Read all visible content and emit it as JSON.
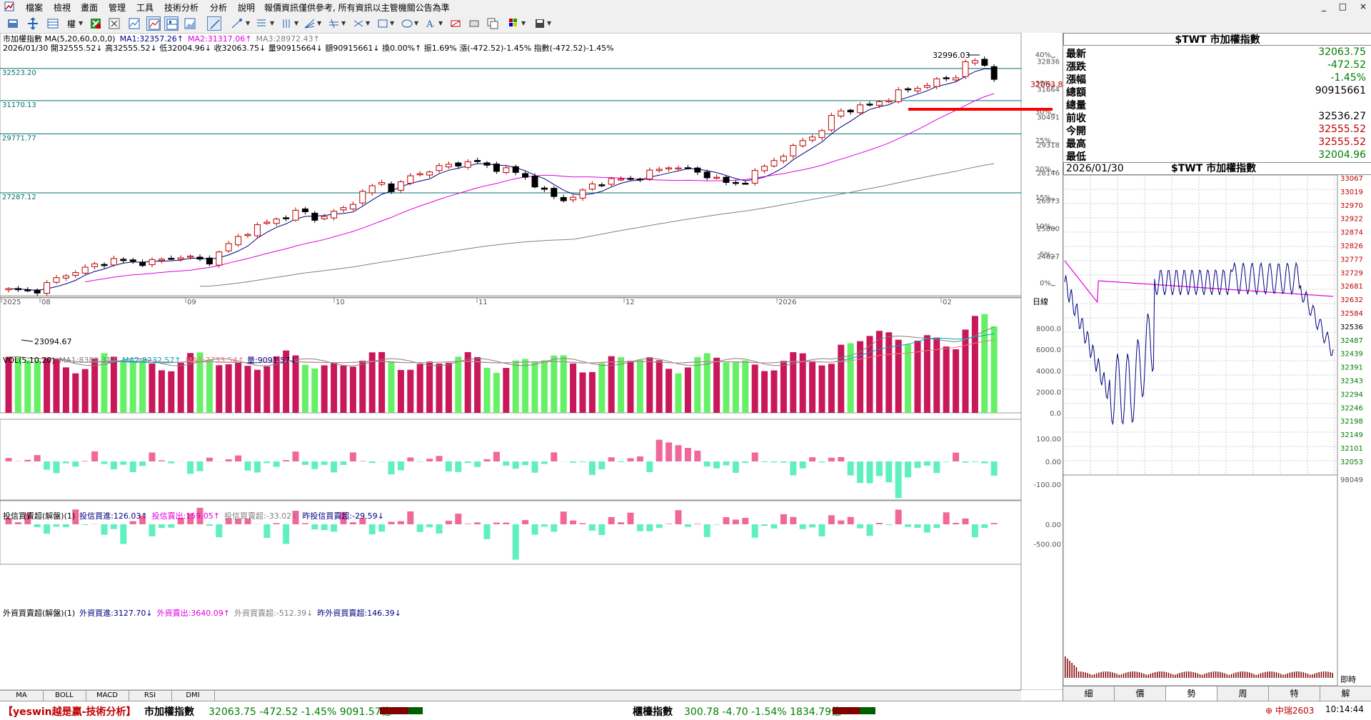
{
  "menu": [
    "檔案",
    "檢視",
    "畫面",
    "管理",
    "工具",
    "技術分析",
    "分析",
    "說明",
    "報價資訊僅供參考, 所有資訊以主管機關公告為準"
  ],
  "window_controls": [
    "_",
    "□",
    "×"
  ],
  "toolbar_icons": [
    "save-icon",
    "move-icon",
    "list-icon",
    "grid-icon",
    "excel-icon",
    "close-chart-icon",
    "chart-icon",
    "chart-line-icon",
    "chart-bar-icon",
    "chart-area-icon",
    "draw-line-icon",
    "fib-icon",
    "channel-icon",
    "text-icon",
    "rect-icon",
    "ellipse-icon",
    "font-icon",
    "eraser-icon",
    "color-icon",
    "floppy-icon"
  ],
  "chart": {
    "title_line": "市加權指數 MA(5,20,60,0,0,0)",
    "ma1": "MA1:32357.26↑",
    "ma2": "MA2:31317.06↑",
    "ma3": "MA3:28972.43↑",
    "info_line": "2026/01/30 開32555.52↓ 高32555.52↓ 低32004.96↓ 收32063.75↓ 量90915664↓ 額90915661↓ 換0.00%↑ 振1.69% 漲(-472.52)-1.45% 指數(-472.52)-1.45%",
    "hlines": [
      "32523.20",
      "31170.13",
      "29771.77",
      "27287.12"
    ],
    "high_label": "32996.03",
    "low_label": "23094.67",
    "last_price_label": "32063.8",
    "price_axis": [
      "32836",
      "31664",
      "30491",
      "29318",
      "28146",
      "26973",
      "25800",
      "24627"
    ],
    "pct_axis": [
      "40%",
      "35%",
      "30%",
      "25%",
      "20%",
      "15%",
      "10%",
      "5%",
      "0%"
    ],
    "x_labels": [
      "2025",
      "08",
      "09",
      "10",
      "11",
      "12",
      "2026",
      "02"
    ],
    "axis_unit": "日線",
    "vol_legend": "VOL(5,10,20)",
    "vol_ma1": "MA1:8389.31↑",
    "vol_ma2": "MA2:8232.57↑",
    "vol_ma3": "MA3:7733.54↑",
    "vol_last": "量:9091.57↓",
    "vol_axis": [
      "8000.0",
      "6000.0",
      "4000.0",
      "2000.0",
      "0.0"
    ],
    "inv_legend": "投信買賣超(解盤)(1)",
    "inv_buy": "投信買進:126.03↑",
    "inv_sell": "投信賣出:159.05↑",
    "inv_net": "投信買賣超:-33.02↓",
    "inv_prev": "昨投信買賣超:-29.59↓",
    "inv_axis": [
      "100.00",
      "0.00",
      "-100.00"
    ],
    "for_legend": "外資買賣超(解盤)(1)",
    "for_buy": "外資買進:3127.70↓",
    "for_sell": "外資賣出:3640.09↑",
    "for_net": "外資買賣超:-512.39↓",
    "for_prev": "昨外資買賣超:146.39↓",
    "for_axis": [
      "0.00",
      "-500.00"
    ]
  },
  "bottom_tabs": [
    "MA",
    "BOLL",
    "MACD",
    "RSI",
    "DMI"
  ],
  "quote": {
    "title": "$TWT 市加權指數",
    "rows": [
      {
        "label": "最新",
        "value": "32063.75",
        "color": "#008000"
      },
      {
        "label": "漲跌",
        "value": "-472.52",
        "color": "#008000"
      },
      {
        "label": "漲幅",
        "value": "-1.45%",
        "color": "#008000"
      },
      {
        "label": "總額",
        "value": "90915661",
        "color": "#000000"
      },
      {
        "label": "總量",
        "value": "",
        "color": "#000000"
      },
      {
        "label": "前收",
        "value": "32536.27",
        "color": "#000000"
      },
      {
        "label": "今開",
        "value": "32555.52",
        "color": "#c00000"
      },
      {
        "label": "最高",
        "value": "32555.52",
        "color": "#c00000"
      },
      {
        "label": "最低",
        "value": "32004.96",
        "color": "#008000"
      }
    ]
  },
  "intraday": {
    "date": "2026/01/30",
    "title": "$TWT 市加權指數",
    "price_axis": [
      "33067",
      "33019",
      "32970",
      "32922",
      "32874",
      "32826",
      "32777",
      "32729",
      "32681",
      "32632",
      "32584",
      "32536",
      "32487",
      "32439",
      "32391",
      "32343",
      "32294",
      "32246",
      "32198",
      "32149",
      "32101",
      "32053"
    ],
    "vol_label": "98049",
    "time_label": "即時"
  },
  "right_tabs": [
    "細",
    "價",
    "勢",
    "周",
    "特",
    "解"
  ],
  "status": {
    "brand": "【yeswin越是贏-技術分析】",
    "idx1_name": "市加權指數",
    "idx1_val": "32063.75 -472.52 -1.45% 9091.57億",
    "idx2_name": "櫃檯指數",
    "idx2_val": "300.78 -4.70 -1.54% 1834.79億",
    "right_label": "中瑞2603",
    "clock": "10:14:44"
  },
  "colors": {
    "up": "#c8185a",
    "down": "#66f066",
    "ma_short": "#000080",
    "ma_mid": "#e000e0",
    "ma_long": "#808080",
    "hline": "#007070",
    "support": "#ff0000"
  }
}
